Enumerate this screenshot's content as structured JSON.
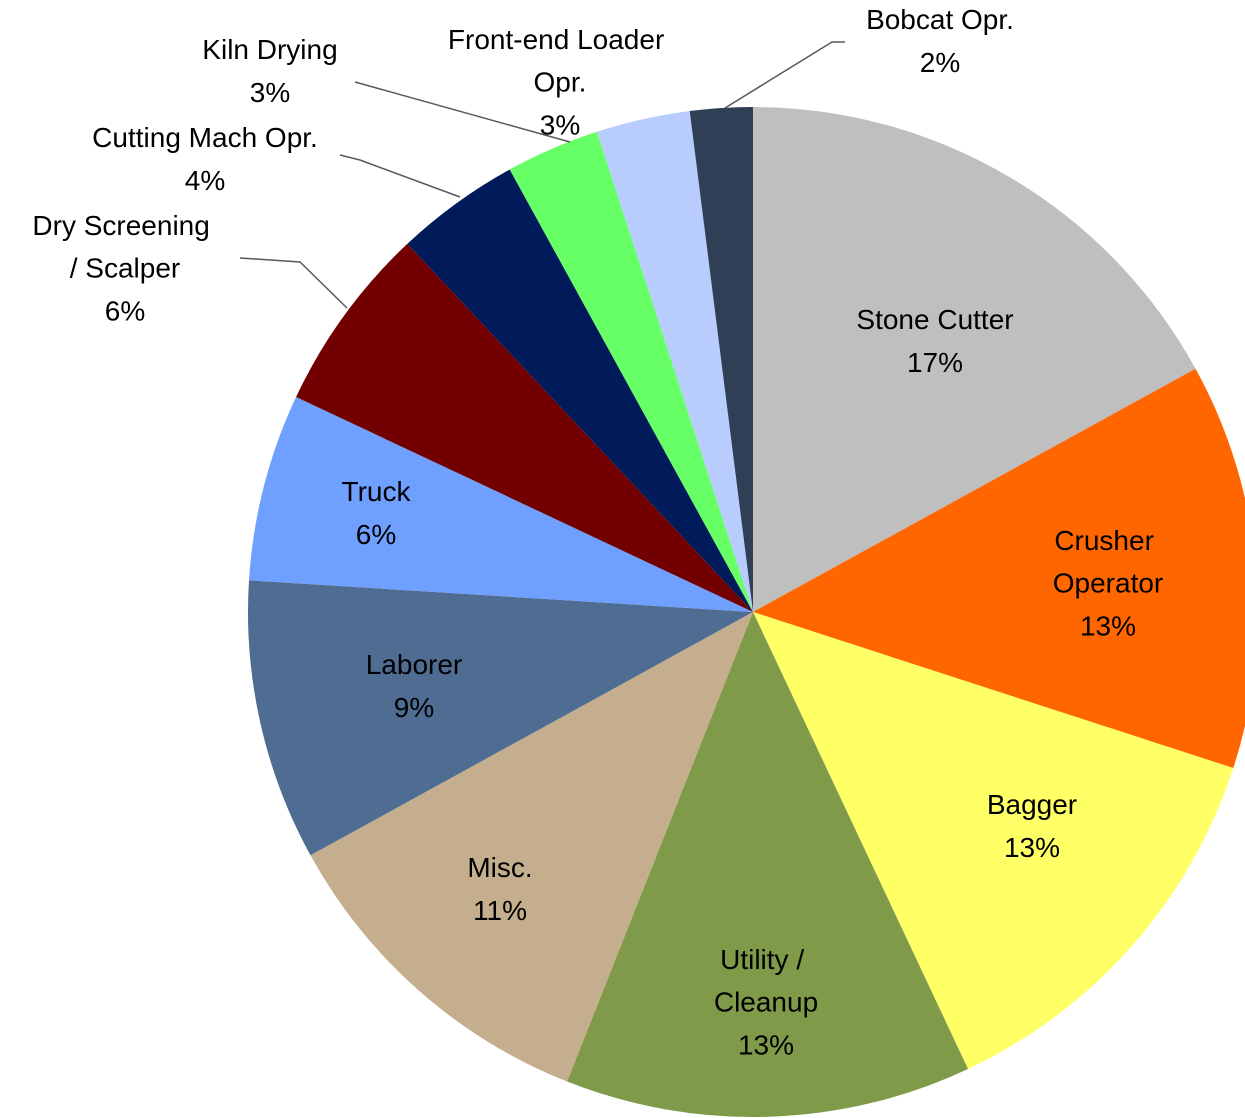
{
  "chart_data": {
    "type": "pie",
    "categories": [
      "Stone Cutter",
      "Crusher Operator",
      "Bagger",
      "Utility / Cleanup",
      "Misc.",
      "Laborer",
      "Truck",
      "Dry Screening / Scalper",
      "Cutting Mach Opr.",
      "Kiln Drying",
      "Front-end Loader Opr.",
      "Bobcat Opr."
    ],
    "values": [
      17,
      13,
      13,
      13,
      11,
      9,
      6,
      6,
      4,
      3,
      3,
      2
    ],
    "value_labels": [
      "17%",
      "13%",
      "13%",
      "13%",
      "11%",
      "9%",
      "6%",
      "6%",
      "4%",
      "3%",
      "3%",
      "2%"
    ],
    "colors": [
      "#bfbfbf",
      "#ff6600",
      "#ffff66",
      "#7f9a48",
      "#c4ae8d",
      "#4f6d92",
      "#6fa0ff",
      "#730000",
      "#001a5a",
      "#66ff66",
      "#b8cdfd",
      "#2e3f56"
    ]
  }
}
